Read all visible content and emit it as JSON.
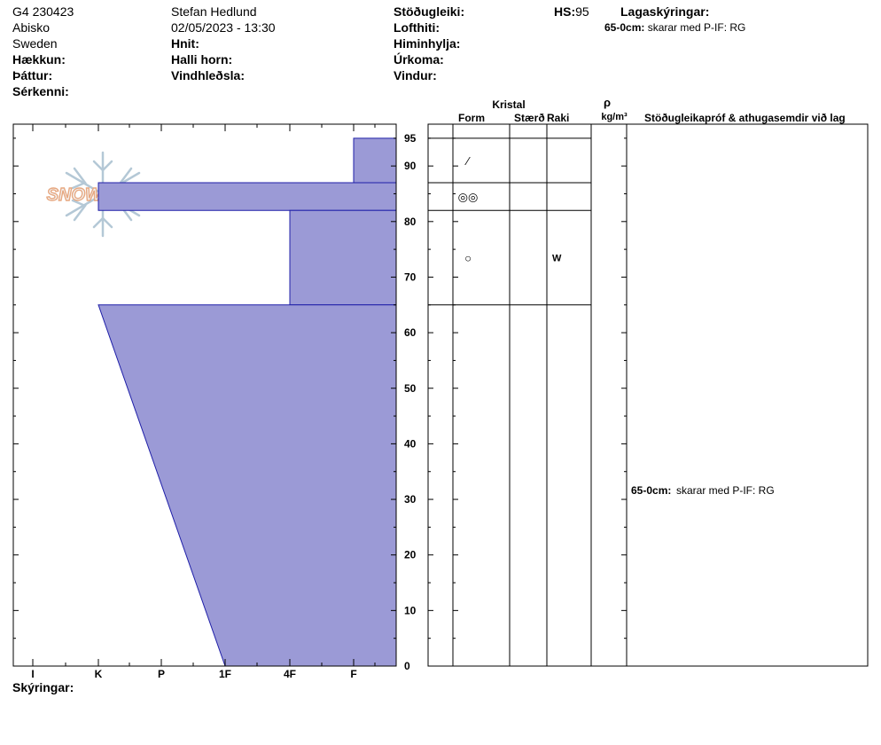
{
  "header": {
    "col1": [
      "G4 230423",
      "Abisko",
      "Sweden"
    ],
    "elevation_label": "Hækkun:",
    "aspect_label": "Þáttur:",
    "specifics_label": "Sérkenni:",
    "observer": "Stefan Hedlund",
    "datetime": "02/05/2023 - 13:30",
    "coords_label": "Hnit:",
    "slope_label": "Halli horn:",
    "wind_loading_label": "Vindhleðsla:",
    "stability_label": "Stöðugleiki:",
    "air_temp_label": "Lofthiti:",
    "sky_label": "Himinhylja:",
    "precip_label": "Úrkoma:",
    "wind_label": "Vindur:",
    "hs_label": "HS:",
    "hs_value": "95",
    "layer_notes_label": "Lagaskýringar:",
    "layer_note_range": "65-0cm:",
    "layer_note_text": "skarar med P-IF: RG"
  },
  "logo": {
    "text": "SNOW PILOT"
  },
  "hardness_axis": [
    "I",
    "K",
    "P",
    "1F",
    "4F",
    "F"
  ],
  "depth_ticks": [
    "95",
    "90",
    "80",
    "70",
    "60",
    "50",
    "40",
    "30",
    "20",
    "10",
    "0"
  ],
  "table_headers": {
    "crystal": "Kristal",
    "form": "Form",
    "size": "Stærð",
    "moisture": "Raki",
    "rho": "ρ",
    "density_unit": "kg/m³",
    "tests": "Stöðugleikapróf & athugasemdir við lag"
  },
  "layers": [
    {
      "top": 95,
      "bottom": 87,
      "hardness": "F",
      "form_icon": "decomposing-fragment-icon",
      "form_symbol": "⁄",
      "moisture": ""
    },
    {
      "top": 87,
      "bottom": 82,
      "hardness": "K",
      "form_icon": "rounded-grains-cluster-icon",
      "form_symbol": "◎◎",
      "moisture": ""
    },
    {
      "top": 82,
      "bottom": 65,
      "hardness": "4F",
      "form_icon": "rounded-grain-icon",
      "form_symbol": "○",
      "moisture": "W"
    },
    {
      "top": 65,
      "bottom": 0,
      "hardness": "K",
      "hardness_bottom": "1F",
      "form_icon": "",
      "form_symbol": "",
      "moisture": ""
    }
  ],
  "test_note": {
    "range": "65-0cm:",
    "text": "skarar med P-IF: RG"
  },
  "footer": {
    "notes_label": "Skýringar:"
  },
  "colors": {
    "layer_fill": "#9b9ad6",
    "layer_edge": "#1f1fa8",
    "logo_orange": "#e8a070",
    "logo_blue": "#8fb4cc"
  }
}
